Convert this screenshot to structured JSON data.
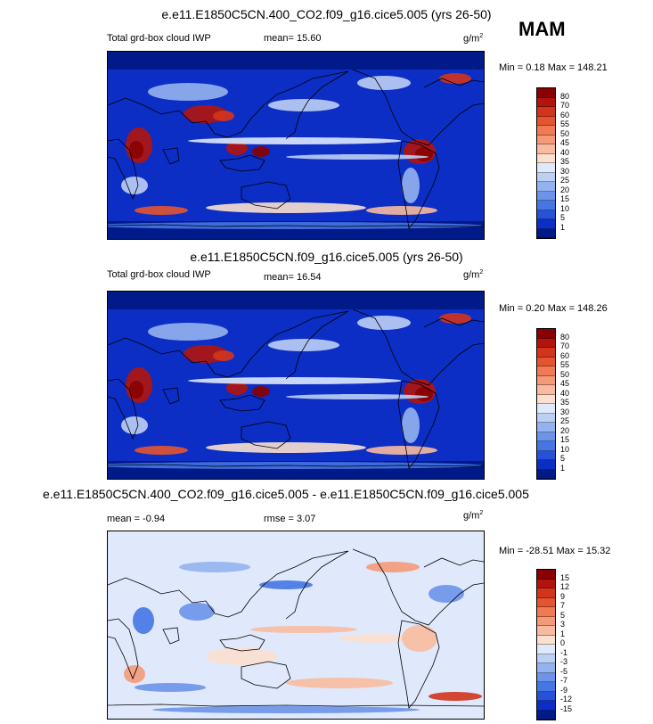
{
  "season": "MAM",
  "unit_base": "g/m",
  "unit_exp": "2",
  "panels": [
    {
      "title": "e.e11.E1850C5CN.400_CO2.f09_g16.cice5.005 (yrs 26-50)",
      "left_label": "Total grd-box cloud IWP",
      "stat_label": "mean=  15.60",
      "minmax": "Min =   0.18 Max = 148.21",
      "kind": "abs"
    },
    {
      "title": "e.e11.E1850C5CN.f09_g16.cice5.005 (yrs 26-50)",
      "left_label": "Total grd-box cloud IWP",
      "stat_label": "mean=  16.54",
      "minmax": "Min =   0.20 Max = 148.26",
      "kind": "abs"
    },
    {
      "title": "e.e11.E1850C5CN.400_CO2.f09_g16.cice5.005 - e.e11.E1850C5CN.f09_g16.cice5.005",
      "left_label": "mean =  -0.94",
      "stat_label": "rmse =   3.07",
      "minmax": "Min = -28.51 Max =  15.32",
      "kind": "diff"
    }
  ],
  "colorbar_abs": {
    "labels": [
      "80",
      "70",
      "60",
      "55",
      "50",
      "45",
      "40",
      "35",
      "30",
      "25",
      "20",
      "15",
      "10",
      "5",
      "1"
    ],
    "colors": [
      "#8b0000",
      "#b2140c",
      "#d3341c",
      "#e4552f",
      "#f07a52",
      "#f59a78",
      "#f8bba0",
      "#fbe0cf",
      "#dfe9fb",
      "#bcd0f6",
      "#93b3f0",
      "#6b94ea",
      "#4576e4",
      "#2552d8",
      "#0c2ec4",
      "#001a8a"
    ]
  },
  "colorbar_diff": {
    "labels": [
      "15",
      "12",
      "9",
      "7",
      "5",
      "3",
      "1",
      "0",
      "-1",
      "-3",
      "-5",
      "-7",
      "-9",
      "-12",
      "-15"
    ],
    "colors": [
      "#8b0000",
      "#b2140c",
      "#d3341c",
      "#e4552f",
      "#f07a52",
      "#f59a78",
      "#f8bba0",
      "#fbe0cf",
      "#dfe9fb",
      "#bcd0f6",
      "#93b3f0",
      "#6b94ea",
      "#4576e4",
      "#2552d8",
      "#0c2ec4",
      "#001a8a"
    ]
  }
}
